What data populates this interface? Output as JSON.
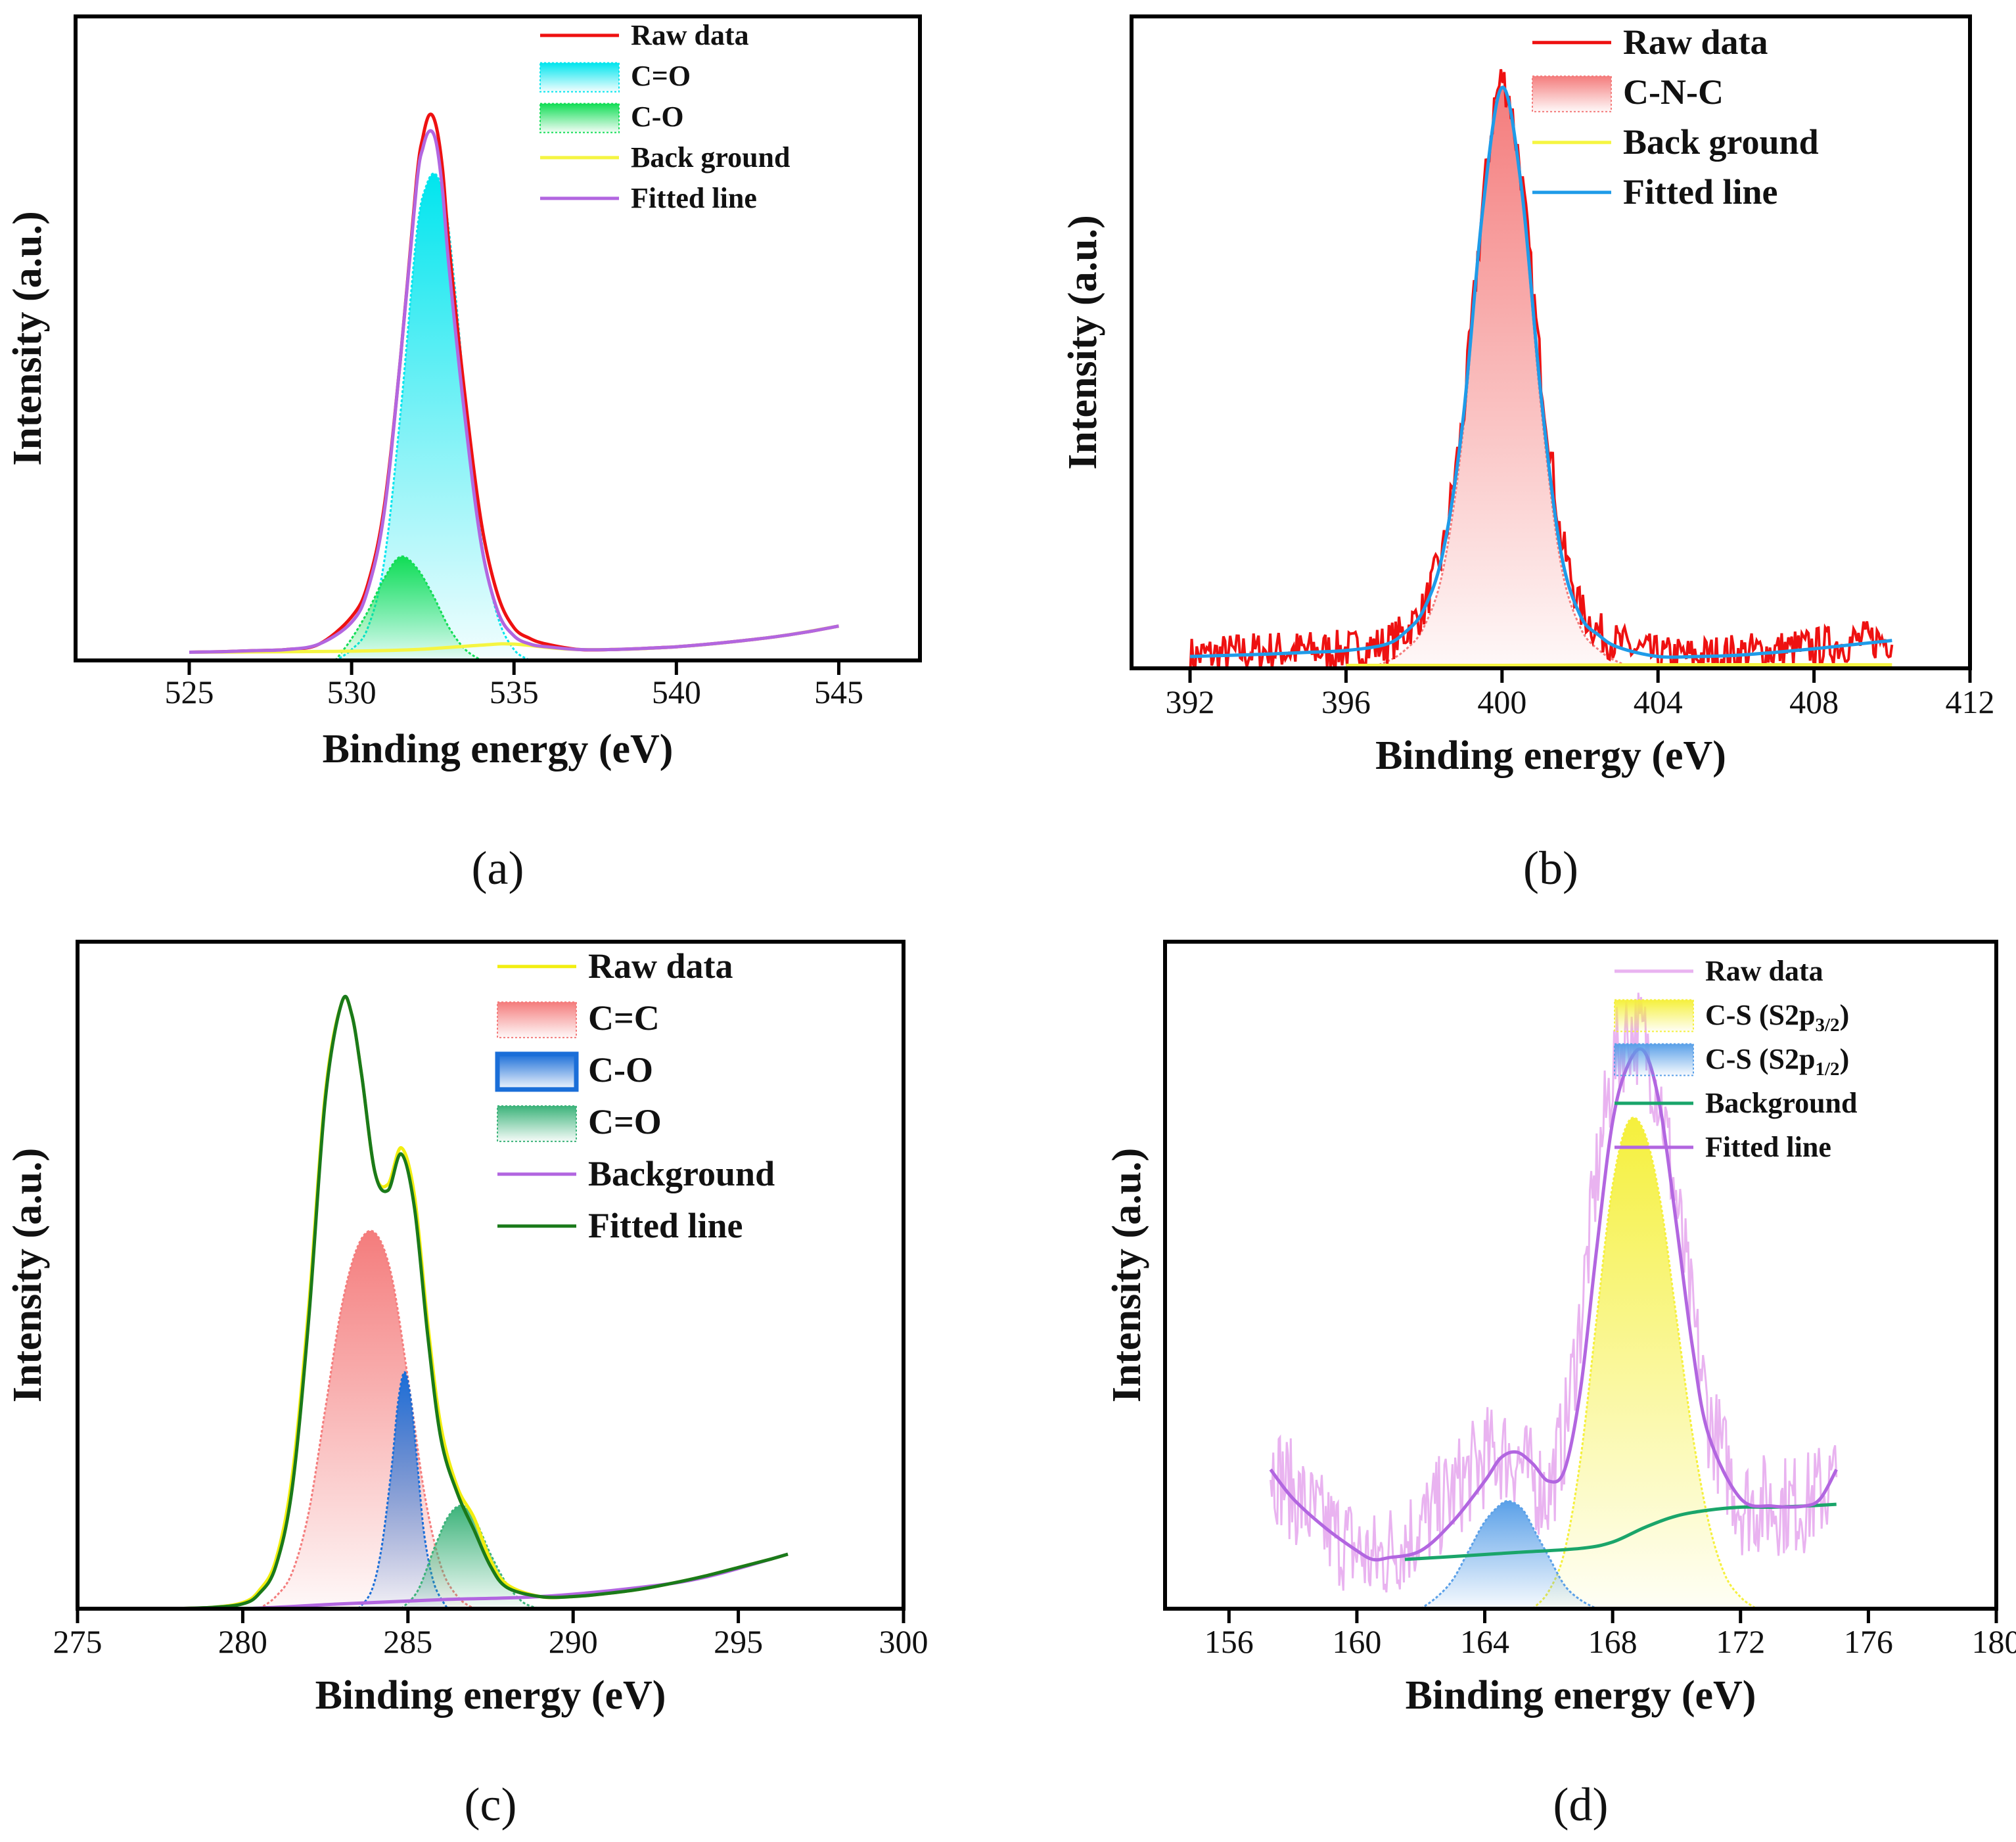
{
  "chart_data": [
    {
      "type": "line",
      "panel_label": "(a)",
      "xlabel": "Binding energy (eV)",
      "ylabel": "Intensity (a.u.)",
      "xlim": [
        521.5,
        547.5
      ],
      "xticks": [
        525,
        530,
        535,
        540,
        545
      ],
      "y_ticks_shown": false,
      "legend_position": "top-right",
      "series": [
        {
          "name": "Raw data",
          "kind": "line",
          "color": "#ee1111",
          "x": [
            525,
            526,
            527,
            528,
            529,
            530,
            530.5,
            531,
            531.5,
            532,
            532.2,
            532.4,
            532.6,
            532.8,
            533,
            533.5,
            534,
            534.5,
            535,
            535.5,
            536,
            537,
            538,
            539,
            540,
            541,
            542,
            543,
            544,
            545
          ],
          "y": [
            0.015,
            0.016,
            0.018,
            0.02,
            0.03,
            0.08,
            0.14,
            0.28,
            0.55,
            0.88,
            0.96,
            1.0,
            0.98,
            0.9,
            0.76,
            0.48,
            0.25,
            0.12,
            0.06,
            0.04,
            0.03,
            0.02,
            0.02,
            0.022,
            0.025,
            0.03,
            0.036,
            0.043,
            0.052,
            0.063
          ]
        },
        {
          "name": "C=O",
          "kind": "area",
          "color": "#00e5ee",
          "x": [
            529.5,
            530,
            530.5,
            531,
            531.5,
            532,
            532.3,
            532.6,
            532.9,
            533.2,
            533.5,
            534,
            534.5,
            535,
            535.5
          ],
          "y": [
            0.0,
            0.02,
            0.06,
            0.18,
            0.45,
            0.78,
            0.87,
            0.89,
            0.83,
            0.67,
            0.48,
            0.22,
            0.08,
            0.02,
            0.0
          ]
        },
        {
          "name": "C-O",
          "kind": "area",
          "color": "#11dd55",
          "x": [
            529.5,
            530,
            530.5,
            531,
            531.5,
            532,
            532.5,
            533,
            533.5,
            534
          ],
          "y": [
            0.0,
            0.04,
            0.09,
            0.15,
            0.19,
            0.17,
            0.12,
            0.06,
            0.02,
            0.0
          ]
        },
        {
          "name": "Back ground",
          "kind": "line",
          "color": "#f5f542",
          "x": [
            525,
            528,
            530,
            532,
            534,
            535,
            537,
            540,
            543,
            545
          ],
          "y": [
            0.015,
            0.016,
            0.017,
            0.02,
            0.028,
            0.03,
            0.02,
            0.025,
            0.043,
            0.063
          ]
        },
        {
          "name": "Fitted line",
          "kind": "line",
          "color": "#b266e0",
          "x": [
            525,
            526,
            527,
            528,
            529,
            530,
            530.5,
            531,
            531.5,
            532,
            532.2,
            532.4,
            532.6,
            532.8,
            533,
            533.5,
            534,
            534.5,
            535,
            535.5,
            536,
            537,
            538,
            539,
            540,
            541,
            542,
            543,
            544,
            545
          ],
          "y": [
            0.015,
            0.016,
            0.018,
            0.02,
            0.03,
            0.07,
            0.13,
            0.27,
            0.55,
            0.87,
            0.94,
            0.97,
            0.95,
            0.86,
            0.72,
            0.44,
            0.21,
            0.09,
            0.045,
            0.03,
            0.025,
            0.02,
            0.02,
            0.022,
            0.025,
            0.03,
            0.036,
            0.043,
            0.052,
            0.063
          ]
        }
      ]
    },
    {
      "type": "line",
      "panel_label": "(b)",
      "xlabel": "Binding energy (eV)",
      "ylabel": "Intensity (a.u.)",
      "xlim": [
        390.5,
        412
      ],
      "xticks": [
        392,
        396,
        400,
        404,
        408,
        412
      ],
      "y_ticks_shown": false,
      "legend_position": "top-right",
      "series": [
        {
          "name": "Raw data",
          "kind": "line",
          "color": "#ee1111",
          "noisy": true,
          "x": [
            392,
            393,
            394,
            395,
            396,
            397,
            397.5,
            398,
            398.5,
            399,
            399.5,
            399.8,
            400,
            400.2,
            400.5,
            401,
            401.5,
            402,
            402.5,
            403,
            404,
            405,
            406,
            407,
            408,
            409,
            410
          ],
          "y": [
            0.02,
            0.025,
            0.03,
            0.03,
            0.03,
            0.04,
            0.06,
            0.1,
            0.2,
            0.42,
            0.78,
            0.95,
            1.0,
            0.96,
            0.83,
            0.5,
            0.22,
            0.1,
            0.06,
            0.04,
            0.02,
            0.02,
            0.025,
            0.03,
            0.035,
            0.045,
            0.05
          ]
        },
        {
          "name": "C-N-C",
          "kind": "area",
          "color": "#f47c7c",
          "x": [
            396.5,
            397,
            397.5,
            398,
            398.5,
            399,
            399.5,
            400,
            400.5,
            401,
            401.5,
            402,
            402.5,
            403,
            403.5
          ],
          "y": [
            0.0,
            0.01,
            0.03,
            0.07,
            0.17,
            0.4,
            0.77,
            0.98,
            0.8,
            0.44,
            0.18,
            0.07,
            0.03,
            0.01,
            0.0
          ]
        },
        {
          "name": "Back ground",
          "kind": "line",
          "color": "#f5f542",
          "x": [
            396,
            400,
            404,
            408,
            410
          ],
          "y": [
            0.005,
            0.005,
            0.006,
            0.006,
            0.006
          ]
        },
        {
          "name": "Fitted line",
          "kind": "line",
          "color": "#1f9be8",
          "x": [
            392,
            393,
            394,
            395,
            396,
            397,
            397.5,
            398,
            398.5,
            399,
            399.5,
            400,
            400.5,
            401,
            401.5,
            402,
            402.5,
            403,
            404,
            405,
            406,
            407,
            408,
            409,
            410
          ],
          "y": [
            0.02,
            0.022,
            0.024,
            0.027,
            0.03,
            0.04,
            0.06,
            0.1,
            0.2,
            0.42,
            0.77,
            0.98,
            0.81,
            0.46,
            0.2,
            0.09,
            0.055,
            0.035,
            0.02,
            0.02,
            0.022,
            0.027,
            0.033,
            0.04,
            0.047
          ]
        }
      ]
    },
    {
      "type": "line",
      "panel_label": "(c)",
      "xlabel": "Binding energy (eV)",
      "ylabel": "Intensity (a.u.)",
      "xlim": [
        275,
        300
      ],
      "xticks": [
        275,
        280,
        285,
        290,
        295,
        300
      ],
      "y_ticks_shown": false,
      "legend_position": "top-right",
      "series": [
        {
          "name": "Raw data",
          "kind": "line",
          "color": "#f2ee10",
          "x": [
            277.5,
            279,
            280,
            280.5,
            281,
            281.5,
            282,
            282.5,
            283,
            283.3,
            283.6,
            284,
            284.4,
            284.8,
            285.2,
            285.6,
            286,
            286.5,
            287,
            287.5,
            288,
            289,
            290,
            291,
            292,
            293,
            294,
            295,
            296,
            296.5
          ],
          "y": [
            0.0,
            0.002,
            0.01,
            0.03,
            0.08,
            0.22,
            0.5,
            0.85,
            1.0,
            0.98,
            0.88,
            0.72,
            0.7,
            0.76,
            0.68,
            0.47,
            0.3,
            0.2,
            0.15,
            0.08,
            0.04,
            0.02,
            0.02,
            0.025,
            0.032,
            0.042,
            0.054,
            0.068,
            0.082,
            0.09
          ]
        },
        {
          "name": "C=C",
          "kind": "area",
          "color": "#f47c7c",
          "x": [
            280.5,
            281,
            281.5,
            282,
            282.5,
            283,
            283.5,
            284,
            284.5,
            285,
            285.5,
            286,
            286.5,
            287
          ],
          "y": [
            0.0,
            0.02,
            0.06,
            0.16,
            0.33,
            0.5,
            0.6,
            0.62,
            0.55,
            0.38,
            0.19,
            0.07,
            0.02,
            0.0
          ]
        },
        {
          "name": "C-O",
          "kind": "area",
          "color": "#1a6ed8",
          "x": [
            283.5,
            283.9,
            284.2,
            284.5,
            284.7,
            284.9,
            285.1,
            285.3,
            285.5,
            285.8,
            286.2
          ],
          "y": [
            0.0,
            0.03,
            0.1,
            0.23,
            0.34,
            0.39,
            0.34,
            0.23,
            0.12,
            0.04,
            0.0
          ]
        },
        {
          "name": "C=O",
          "kind": "area",
          "color": "#3cb37a",
          "x": [
            284.8,
            285.3,
            285.8,
            286.2,
            286.6,
            287,
            287.5,
            288,
            288.5,
            289
          ],
          "y": [
            0.0,
            0.03,
            0.1,
            0.15,
            0.17,
            0.15,
            0.09,
            0.04,
            0.01,
            0.0
          ]
        },
        {
          "name": "Background",
          "kind": "line",
          "color": "#b266e0",
          "x": [
            277.5,
            280,
            283,
            286,
            289,
            292,
            294,
            296.5
          ],
          "y": [
            0.0,
            0.0,
            0.008,
            0.015,
            0.02,
            0.035,
            0.052,
            0.09
          ]
        },
        {
          "name": "Fitted line",
          "kind": "line",
          "color": "#1a7a1a",
          "x": [
            277.5,
            279,
            280,
            280.5,
            281,
            281.5,
            282,
            282.5,
            283,
            283.3,
            283.6,
            284,
            284.4,
            284.8,
            285.2,
            285.6,
            286,
            286.5,
            287,
            287.5,
            288,
            289,
            290,
            291,
            292,
            293,
            294,
            295,
            296,
            296.5
          ],
          "y": [
            0.0,
            0.002,
            0.008,
            0.025,
            0.07,
            0.2,
            0.48,
            0.84,
            1.0,
            0.98,
            0.88,
            0.72,
            0.69,
            0.75,
            0.66,
            0.45,
            0.28,
            0.19,
            0.13,
            0.07,
            0.035,
            0.02,
            0.02,
            0.025,
            0.032,
            0.042,
            0.054,
            0.068,
            0.082,
            0.09
          ]
        }
      ]
    },
    {
      "type": "line",
      "panel_label": "(d)",
      "xlabel": "Binding energy (eV)",
      "ylabel": "Intensity (a.u.)",
      "xlim": [
        154,
        180
      ],
      "xticks": [
        156,
        160,
        164,
        168,
        172,
        176,
        180
      ],
      "y_ticks_shown": false,
      "legend_position": "top-right",
      "series": [
        {
          "name": "Raw data",
          "kind": "line",
          "color": "#e9b3f0",
          "noisy": true,
          "x": [
            157.3,
            158,
            159,
            160,
            160.5,
            161,
            162,
            163,
            164,
            164.5,
            165,
            165.5,
            166,
            166.5,
            167,
            167.5,
            168,
            168.5,
            169,
            169.5,
            170,
            170.5,
            171,
            172,
            173,
            174,
            175
          ],
          "y": [
            0.25,
            0.2,
            0.14,
            0.1,
            0.08,
            0.1,
            0.14,
            0.2,
            0.26,
            0.27,
            0.26,
            0.22,
            0.2,
            0.3,
            0.5,
            0.75,
            0.93,
            1.0,
            0.98,
            0.88,
            0.7,
            0.5,
            0.33,
            0.18,
            0.18,
            0.18,
            0.22
          ]
        },
        {
          "name": "C-S (S2p3/2)",
          "kind": "area",
          "color": "#f5f03c",
          "x": [
            165.5,
            166,
            166.5,
            167,
            167.5,
            168,
            168.5,
            169,
            169.5,
            170,
            170.5,
            171,
            171.5,
            172,
            172.5
          ],
          "y": [
            0.0,
            0.03,
            0.1,
            0.26,
            0.5,
            0.73,
            0.84,
            0.82,
            0.7,
            0.5,
            0.3,
            0.15,
            0.06,
            0.02,
            0.0
          ]
        },
        {
          "name": "C-S (S2p1/2)",
          "kind": "area",
          "color": "#5aa0e8",
          "x": [
            162,
            162.5,
            163,
            163.5,
            164,
            164.5,
            164.8,
            165.2,
            165.6,
            166,
            166.5,
            167,
            167.5
          ],
          "y": [
            0.0,
            0.02,
            0.05,
            0.1,
            0.15,
            0.18,
            0.185,
            0.17,
            0.13,
            0.09,
            0.04,
            0.015,
            0.0
          ]
        },
        {
          "name": "Background",
          "kind": "line",
          "color": "#1aa56a",
          "x": [
            161.5,
            163,
            165,
            167,
            168,
            169,
            170,
            171,
            172,
            173,
            174,
            175
          ],
          "y": [
            0.085,
            0.09,
            0.097,
            0.104,
            0.115,
            0.14,
            0.16,
            0.17,
            0.175,
            0.175,
            0.177,
            0.18
          ]
        },
        {
          "name": "Fitted line",
          "kind": "line",
          "color": "#b266e0",
          "x": [
            157.3,
            158,
            159,
            160,
            160.5,
            161,
            162,
            163,
            164,
            164.5,
            165,
            165.5,
            166,
            166.5,
            167,
            167.5,
            168,
            168.5,
            169,
            169.5,
            170,
            170.5,
            171,
            172,
            173,
            174,
            174.5,
            175
          ],
          "y": [
            0.24,
            0.19,
            0.14,
            0.1,
            0.085,
            0.088,
            0.1,
            0.15,
            0.22,
            0.26,
            0.27,
            0.25,
            0.22,
            0.24,
            0.38,
            0.62,
            0.84,
            0.94,
            0.96,
            0.86,
            0.66,
            0.45,
            0.3,
            0.19,
            0.177,
            0.177,
            0.19,
            0.24
          ]
        }
      ]
    }
  ]
}
